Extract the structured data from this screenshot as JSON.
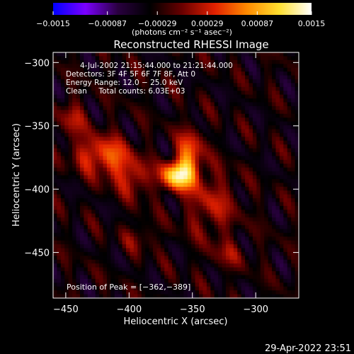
{
  "chart_data": {
    "type": "heatmap",
    "title": "Reconstructed RHESSI Image",
    "xlabel": "Heliocentric X (arcsec)",
    "ylabel": "Heliocentric Y (arcsec)",
    "xlim": [
      -460,
      -266
    ],
    "ylim": [
      -486,
      -292
    ],
    "x_ticks": [
      -450,
      -400,
      -350,
      -300
    ],
    "x_tick_labels": [
      "−450",
      "−400",
      "−350",
      "−300"
    ],
    "y_ticks": [
      -300,
      -350,
      -400,
      -450
    ],
    "y_tick_labels": [
      "−300",
      "−350",
      "−400",
      "−450"
    ],
    "colorbar": {
      "min": -0.0015,
      "max": 0.0015,
      "ticks": [
        -0.0015,
        -0.00087,
        -0.00029,
        0.00029,
        0.00087,
        0.0015
      ],
      "tick_labels": [
        "−0.0015",
        "−0.00087",
        "−0.00029",
        "0.00029",
        "0.00087",
        "0.0015"
      ],
      "unit_label": "(photons cm⁻² s⁻¹ asec⁻²)",
      "colormap": [
        "#0000ff",
        "#7b00ff",
        "#2a0040",
        "#000000",
        "#6a0000",
        "#e22000",
        "#ff8a00",
        "#ffdf30",
        "#ffffff"
      ]
    },
    "info_lines": [
      "4-Jul-2002 21:15:44.000 to 21:21:44.000",
      "Detectors: 3F 4F 5F 6F 7F 8F, Att 0",
      "Energy Range: 12.0 − 25.0 keV",
      "Clean     Total counts: 6.03E+03"
    ],
    "peak": {
      "label": "Position of Peak = [−362,−389]",
      "x": -362,
      "y": -389
    },
    "sources": [
      {
        "x": -362,
        "y": -389,
        "sx": 9,
        "sy": 8,
        "amp": 0.00155
      },
      {
        "x": -352,
        "y": -372,
        "sx": 7,
        "sy": 14,
        "amp": 0.0009
      },
      {
        "x": -428,
        "y": -372,
        "sx": 12,
        "sy": 10,
        "amp": 0.0007
      },
      {
        "x": -410,
        "y": -378,
        "sx": 10,
        "sy": 12,
        "amp": 0.00065
      },
      {
        "x": -395,
        "y": -392,
        "sx": 8,
        "sy": 10,
        "amp": 0.0006
      },
      {
        "x": -335,
        "y": -412,
        "sx": 14,
        "sy": 18,
        "amp": 0.00055
      },
      {
        "x": -445,
        "y": -345,
        "sx": 8,
        "sy": 10,
        "amp": 0.0005
      },
      {
        "x": -322,
        "y": -452,
        "sx": 10,
        "sy": 8,
        "amp": 0.00035
      },
      {
        "x": -392,
        "y": -438,
        "sx": 10,
        "sy": 8,
        "amp": 0.0003
      }
    ]
  },
  "timestamp": "29-Apr-2022 23:51"
}
